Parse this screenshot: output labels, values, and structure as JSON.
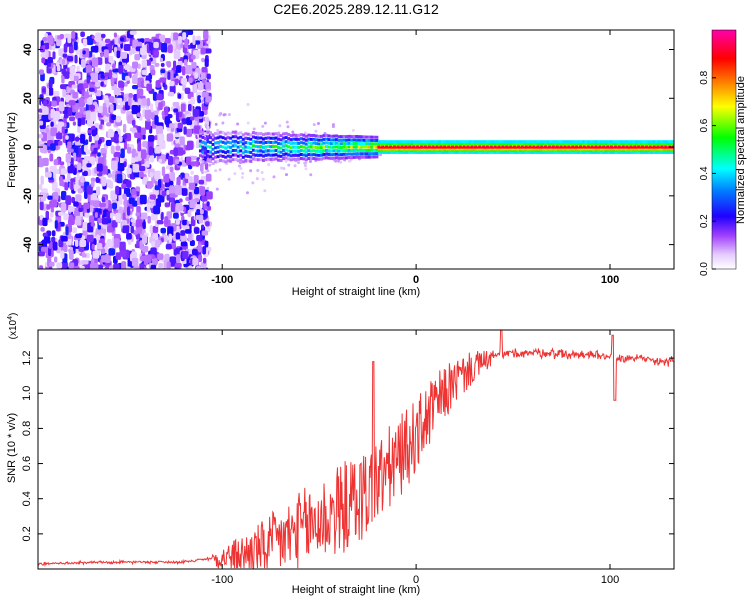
{
  "title": "C2E6.2025.289.12.11.G12",
  "chart_data": [
    {
      "type": "heatmap",
      "title": "C2E6.2025.289.12.11.G12",
      "xlabel": "Height of straight line (km)",
      "ylabel": "Frequency (Hz)",
      "xlim": [
        -195,
        133
      ],
      "ylim": [
        -50,
        48
      ],
      "x_ticks": [
        -100,
        0,
        100
      ],
      "x_tick_labels": [
        "-100",
        "0",
        "100"
      ],
      "y_ticks": [
        -40,
        -20,
        0,
        20,
        40
      ],
      "y_tick_labels": [
        "-40",
        "-20",
        "0",
        "20",
        "40"
      ],
      "colorbar": {
        "label": "Normalized spectral amplitude",
        "range": [
          0,
          1
        ],
        "ticks": [
          0,
          0.2,
          0.4,
          0.6,
          0.8
        ],
        "tick_labels": [
          "0.0",
          "0.2",
          "0.4",
          "0.6",
          "0.8"
        ],
        "colors": [
          "#ffffff",
          "#e6ccff",
          "#8000ff",
          "#0000ff",
          "#00ffff",
          "#00ff00",
          "#ffff00",
          "#ff8000",
          "#ff0000",
          "#ff00aa"
        ]
      },
      "features": {
        "carrier_frequency_hz": 0,
        "strong_line_start_km": -20,
        "noisy_region_end_km": -112
      }
    },
    {
      "type": "line",
      "xlabel": "Height of straight line (km)",
      "ylabel": "SNR (10 * v/v)",
      "scale_label": "(x10",
      "scale_exponent": "4",
      "xlim": [
        -195,
        133
      ],
      "ylim": [
        0,
        1.36
      ],
      "x_ticks": [
        -100,
        0,
        100
      ],
      "x_tick_labels": [
        "-100",
        "0",
        "100"
      ],
      "y_ticks": [
        0.2,
        0.4,
        0.6,
        0.8,
        1.0,
        1.2
      ],
      "y_tick_labels": [
        "0.2",
        "0.4",
        "0.6",
        "0.8",
        "1.0",
        "1.2"
      ],
      "series": [
        {
          "name": "SNR",
          "color": "#ee3333",
          "x": [
            -195,
            -150,
            -120,
            -100,
            -90,
            -80,
            -70,
            -60,
            -50,
            -40,
            -30,
            -20,
            -10,
            0,
            10,
            20,
            30,
            40,
            50,
            60,
            70,
            80,
            90,
            100,
            110,
            120,
            133
          ],
          "values": [
            0.03,
            0.04,
            0.04,
            0.07,
            0.09,
            0.13,
            0.18,
            0.24,
            0.3,
            0.36,
            0.42,
            0.52,
            0.64,
            0.78,
            0.95,
            1.08,
            1.16,
            1.21,
            1.23,
            1.23,
            1.23,
            1.22,
            1.22,
            1.21,
            1.2,
            1.19,
            1.18
          ]
        }
      ]
    }
  ]
}
